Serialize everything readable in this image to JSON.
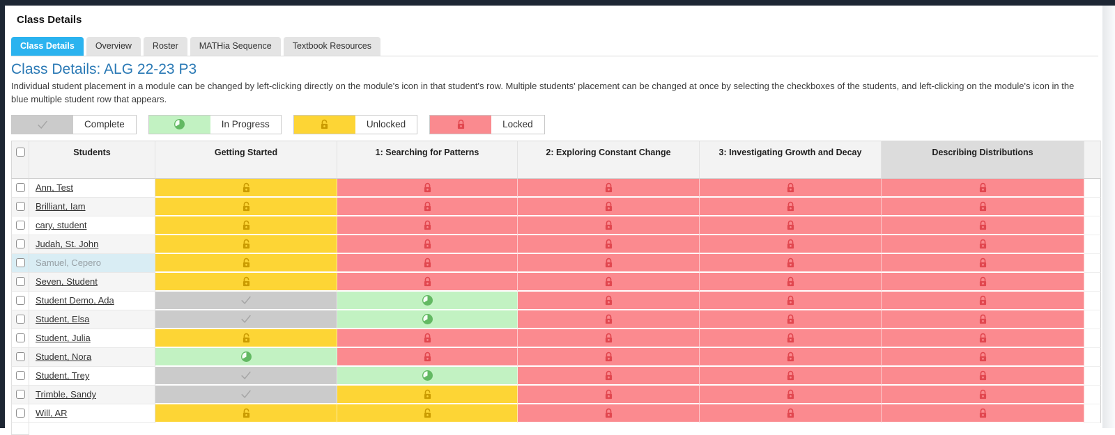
{
  "page": {
    "title": "Class Details",
    "heading": "Class Details: ALG 22-23 P3",
    "description": "Individual student placement in a module can be changed by left-clicking directly on the module's icon in that student's row. Multiple students' placement can be changed at once by selecting the checkboxes of the students, and left-clicking on the module's icon in the blue multiple student row that appears."
  },
  "tabs": [
    {
      "label": "Class Details",
      "active": true
    },
    {
      "label": "Overview",
      "active": false
    },
    {
      "label": "Roster",
      "active": false
    },
    {
      "label": "MATHia Sequence",
      "active": false
    },
    {
      "label": "Textbook Resources",
      "active": false
    }
  ],
  "legend": [
    {
      "status": "complete",
      "label": "Complete",
      "icon": "check-icon"
    },
    {
      "status": "in-progress",
      "label": "In Progress",
      "icon": "pie-icon"
    },
    {
      "status": "unlocked",
      "label": "Unlocked",
      "icon": "lock-open-icon"
    },
    {
      "status": "locked",
      "label": "Locked",
      "icon": "lock-closed-icon"
    }
  ],
  "table": {
    "columns": [
      "Students",
      "Getting Started",
      "1: Searching for Patterns",
      "2: Exploring Constant Change",
      "3: Investigating Growth and Decay",
      "Describing Distributions"
    ],
    "rows": [
      {
        "name": "Ann, Test",
        "link": true,
        "highlighted": false,
        "statuses": [
          "unlocked",
          "locked",
          "locked",
          "locked",
          "locked"
        ]
      },
      {
        "name": "Brilliant, Iam",
        "link": true,
        "highlighted": false,
        "statuses": [
          "unlocked",
          "locked",
          "locked",
          "locked",
          "locked"
        ]
      },
      {
        "name": "cary, student",
        "link": true,
        "highlighted": false,
        "statuses": [
          "unlocked",
          "locked",
          "locked",
          "locked",
          "locked"
        ]
      },
      {
        "name": "Judah, St. John",
        "link": true,
        "highlighted": false,
        "statuses": [
          "unlocked",
          "locked",
          "locked",
          "locked",
          "locked"
        ]
      },
      {
        "name": "Samuel, Cepero",
        "link": false,
        "highlighted": true,
        "statuses": [
          "unlocked",
          "locked",
          "locked",
          "locked",
          "locked"
        ]
      },
      {
        "name": "Seven, Student",
        "link": true,
        "highlighted": false,
        "statuses": [
          "unlocked",
          "locked",
          "locked",
          "locked",
          "locked"
        ]
      },
      {
        "name": "Student Demo, Ada",
        "link": true,
        "highlighted": false,
        "statuses": [
          "complete",
          "in-progress",
          "locked",
          "locked",
          "locked"
        ]
      },
      {
        "name": "Student, Elsa",
        "link": true,
        "highlighted": false,
        "statuses": [
          "complete",
          "in-progress",
          "locked",
          "locked",
          "locked"
        ]
      },
      {
        "name": "Student, Julia",
        "link": true,
        "highlighted": false,
        "statuses": [
          "unlocked",
          "locked",
          "locked",
          "locked",
          "locked"
        ]
      },
      {
        "name": "Student, Nora",
        "link": true,
        "highlighted": false,
        "statuses": [
          "in-progress",
          "locked",
          "locked",
          "locked",
          "locked"
        ]
      },
      {
        "name": "Student, Trey",
        "link": true,
        "highlighted": false,
        "statuses": [
          "complete",
          "in-progress",
          "locked",
          "locked",
          "locked"
        ]
      },
      {
        "name": "Trimble, Sandy",
        "link": true,
        "highlighted": false,
        "statuses": [
          "complete",
          "unlocked",
          "locked",
          "locked",
          "locked"
        ]
      },
      {
        "name": "Will, AR",
        "link": true,
        "highlighted": false,
        "statuses": [
          "unlocked",
          "unlocked",
          "locked",
          "locked",
          "locked"
        ]
      }
    ]
  },
  "colors": {
    "top_bar": "#1d2633",
    "tab_active": "#2bb3ef",
    "heading_blue": "#2a79b5",
    "highlight_row": "#d9edf4",
    "complete_bg": "#cbcbcb",
    "complete_icon": "#a6a6a6",
    "in_progress_bg": "#c2f2c2",
    "in_progress_icon": "#63b963",
    "unlocked_bg": "#fdd535",
    "unlocked_icon": "#ca9b00",
    "locked_bg": "#fb8a8f",
    "locked_icon": "#e1474f"
  }
}
